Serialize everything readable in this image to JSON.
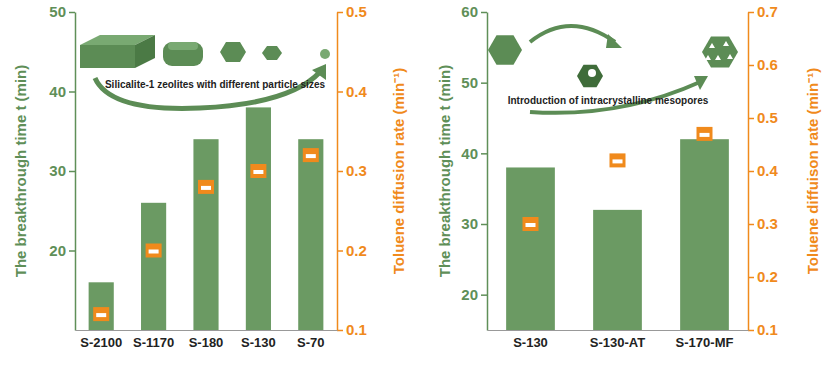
{
  "chart_data": [
    {
      "type": "bar",
      "annotation": "Silicalite-1 zeolites with different particle sizes",
      "y_label": "The breakthrough time t (min)",
      "y2_label": "Toluene diffusion rate (min⁻¹)",
      "categories": [
        "S-2100",
        "S-1170",
        "S-180",
        "S-130",
        "S-70"
      ],
      "series": [
        {
          "type": "bar",
          "color": "#6b9a63",
          "values": [
            16,
            26,
            34,
            38,
            34
          ]
        },
        {
          "type": "scatter",
          "axis": "y2",
          "color": "#f08a1c",
          "marker": "square",
          "values": [
            0.12,
            0.2,
            0.28,
            0.3,
            0.32
          ]
        }
      ],
      "ylim": [
        10,
        50
      ],
      "yticks": [
        20,
        30,
        40,
        50
      ],
      "y2lim": [
        0.1,
        0.5
      ],
      "y2ticks": [
        0.1,
        0.2,
        0.3,
        0.4,
        0.5
      ]
    },
    {
      "type": "bar",
      "annotation": "Introduction of intracrystalline mesopores",
      "y_label": "The breakthrough time t (min)",
      "y2_label": "Toluene diffuison rate (min⁻¹)",
      "categories": [
        "S-130",
        "S-130-AT",
        "S-170-MF"
      ],
      "series": [
        {
          "type": "bar",
          "color": "#6b9a63",
          "values": [
            38,
            32,
            42
          ]
        },
        {
          "type": "scatter",
          "axis": "y2",
          "color": "#f08a1c",
          "marker": "square",
          "values": [
            0.3,
            0.42,
            0.47
          ]
        }
      ],
      "ylim": [
        15,
        60
      ],
      "yticks": [
        20,
        30,
        40,
        50,
        60
      ],
      "y2lim": [
        0.1,
        0.7
      ],
      "y2ticks": [
        0.1,
        0.2,
        0.3,
        0.4,
        0.5,
        0.6,
        0.7
      ]
    }
  ]
}
